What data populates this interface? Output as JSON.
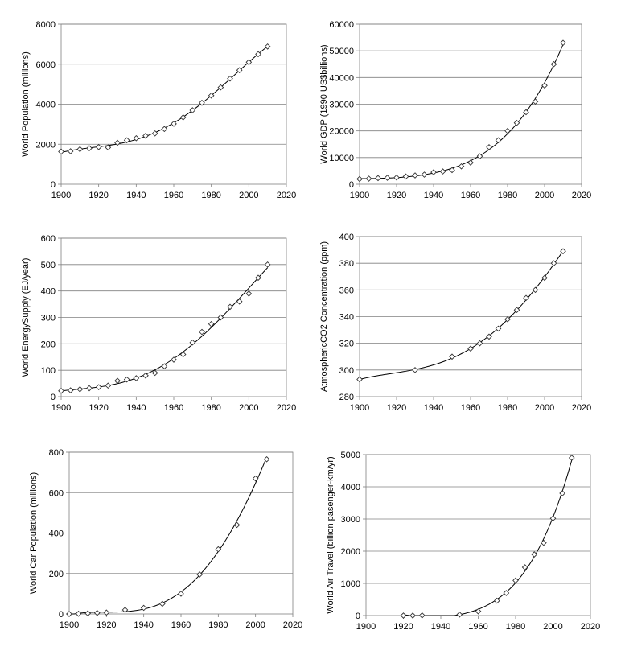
{
  "figure_title": "",
  "chart_data": [
    {
      "id": "population",
      "type": "scatter",
      "title": "",
      "xlabel": "",
      "ylabel": "World Population (millions)",
      "xlim": [
        1900,
        2020
      ],
      "ylim": [
        0,
        8000
      ],
      "xticks": [
        1900,
        1920,
        1940,
        1960,
        1980,
        2000,
        2020
      ],
      "yticks": [
        0,
        2000,
        4000,
        6000,
        8000
      ],
      "grid": "horizontal",
      "x": [
        1900,
        1905,
        1910,
        1915,
        1920,
        1925,
        1930,
        1935,
        1940,
        1945,
        1950,
        1955,
        1960,
        1965,
        1970,
        1975,
        1980,
        1985,
        1990,
        1995,
        2000,
        2005,
        2010
      ],
      "y": [
        1630,
        1650,
        1750,
        1800,
        1860,
        1840,
        2070,
        2200,
        2300,
        2420,
        2540,
        2760,
        3020,
        3340,
        3700,
        4070,
        4430,
        4840,
        5280,
        5700,
        6100,
        6500,
        6880
      ],
      "trend": "fitted curve"
    },
    {
      "id": "gdp",
      "type": "scatter",
      "title": "",
      "xlabel": "",
      "ylabel": "World GDP (1990 US$billions)",
      "xlim": [
        1900,
        2020
      ],
      "ylim": [
        0,
        60000
      ],
      "xticks": [
        1900,
        1920,
        1940,
        1960,
        1980,
        2000,
        2020
      ],
      "yticks": [
        0,
        10000,
        20000,
        30000,
        40000,
        50000,
        60000
      ],
      "grid": "horizontal",
      "x": [
        1900,
        1905,
        1910,
        1915,
        1920,
        1925,
        1930,
        1935,
        1940,
        1945,
        1950,
        1955,
        1960,
        1965,
        1970,
        1975,
        1980,
        1985,
        1990,
        1995,
        2000,
        2005,
        2010
      ],
      "y": [
        1970,
        2100,
        2300,
        2400,
        2500,
        2900,
        3300,
        3600,
        4500,
        4800,
        5300,
        6700,
        8100,
        10500,
        13900,
        16500,
        20000,
        23000,
        27000,
        31000,
        37000,
        45000,
        53000
      ],
      "trend": "fitted curve"
    },
    {
      "id": "energy",
      "type": "scatter",
      "title": "",
      "xlabel": "",
      "ylabel": "World  EnergySupply (EJ/year)",
      "xlim": [
        1900,
        2020
      ],
      "ylim": [
        0,
        600
      ],
      "xticks": [
        1900,
        1920,
        1940,
        1960,
        1980,
        2000,
        2020
      ],
      "yticks": [
        0,
        100,
        200,
        300,
        400,
        500,
        600
      ],
      "grid": "horizontal",
      "x": [
        1900,
        1905,
        1910,
        1915,
        1920,
        1925,
        1930,
        1935,
        1940,
        1945,
        1950,
        1955,
        1960,
        1965,
        1970,
        1975,
        1980,
        1985,
        1990,
        1995,
        2000,
        2005,
        2010
      ],
      "y": [
        22,
        24,
        28,
        32,
        36,
        42,
        60,
        65,
        70,
        80,
        90,
        115,
        140,
        160,
        205,
        245,
        275,
        300,
        340,
        360,
        390,
        450,
        500
      ],
      "trend": "fitted curve"
    },
    {
      "id": "co2",
      "type": "scatter",
      "title": "",
      "xlabel": "",
      "ylabel": "AtmosphericCO2 Concentration (ppm)",
      "xlim": [
        1900,
        2020
      ],
      "ylim": [
        280,
        400
      ],
      "xticks": [
        1900,
        1920,
        1940,
        1960,
        1980,
        2000,
        2020
      ],
      "yticks": [
        280,
        300,
        320,
        340,
        360,
        380,
        400
      ],
      "grid": "horizontal",
      "x": [
        1900,
        1930,
        1950,
        1960,
        1965,
        1970,
        1975,
        1980,
        1985,
        1990,
        1995,
        2000,
        2005,
        2010
      ],
      "y": [
        293,
        300,
        310,
        316,
        320,
        325,
        331,
        338,
        345,
        354,
        360,
        369,
        380,
        389
      ],
      "trend": "fitted curve"
    },
    {
      "id": "cars",
      "type": "scatter",
      "title": "",
      "xlabel": "",
      "ylabel": "World Car Population (millions)",
      "xlim": [
        1900,
        2020
      ],
      "ylim": [
        0,
        800
      ],
      "xticks": [
        1900,
        1920,
        1940,
        1960,
        1980,
        2000,
        2020
      ],
      "yticks": [
        0,
        200,
        400,
        600,
        800
      ],
      "grid": "horizontal",
      "x": [
        1900,
        1905,
        1910,
        1915,
        1920,
        1930,
        1940,
        1950,
        1960,
        1970,
        1980,
        1990,
        2000,
        2006
      ],
      "y": [
        0,
        1,
        3,
        5,
        7,
        20,
        30,
        50,
        100,
        195,
        320,
        440,
        670,
        765
      ],
      "trend": "fitted curve"
    },
    {
      "id": "airtravel",
      "type": "scatter",
      "title": "",
      "xlabel": "",
      "ylabel": "World Air Travel (billion pasenger-km/yr)",
      "xlim": [
        1900,
        2020
      ],
      "ylim": [
        0,
        5000
      ],
      "xticks": [
        1900,
        1920,
        1940,
        1960,
        1980,
        2000,
        2020
      ],
      "yticks": [
        0,
        1000,
        2000,
        3000,
        4000,
        5000
      ],
      "grid": "horizontal",
      "x": [
        1920,
        1925,
        1930,
        1950,
        1960,
        1970,
        1975,
        1980,
        1985,
        1990,
        1995,
        2000,
        2005,
        2010
      ],
      "y": [
        0,
        0,
        5,
        30,
        130,
        460,
        700,
        1090,
        1500,
        1900,
        2260,
        3020,
        3800,
        4900
      ],
      "trend": "fitted curve"
    }
  ]
}
